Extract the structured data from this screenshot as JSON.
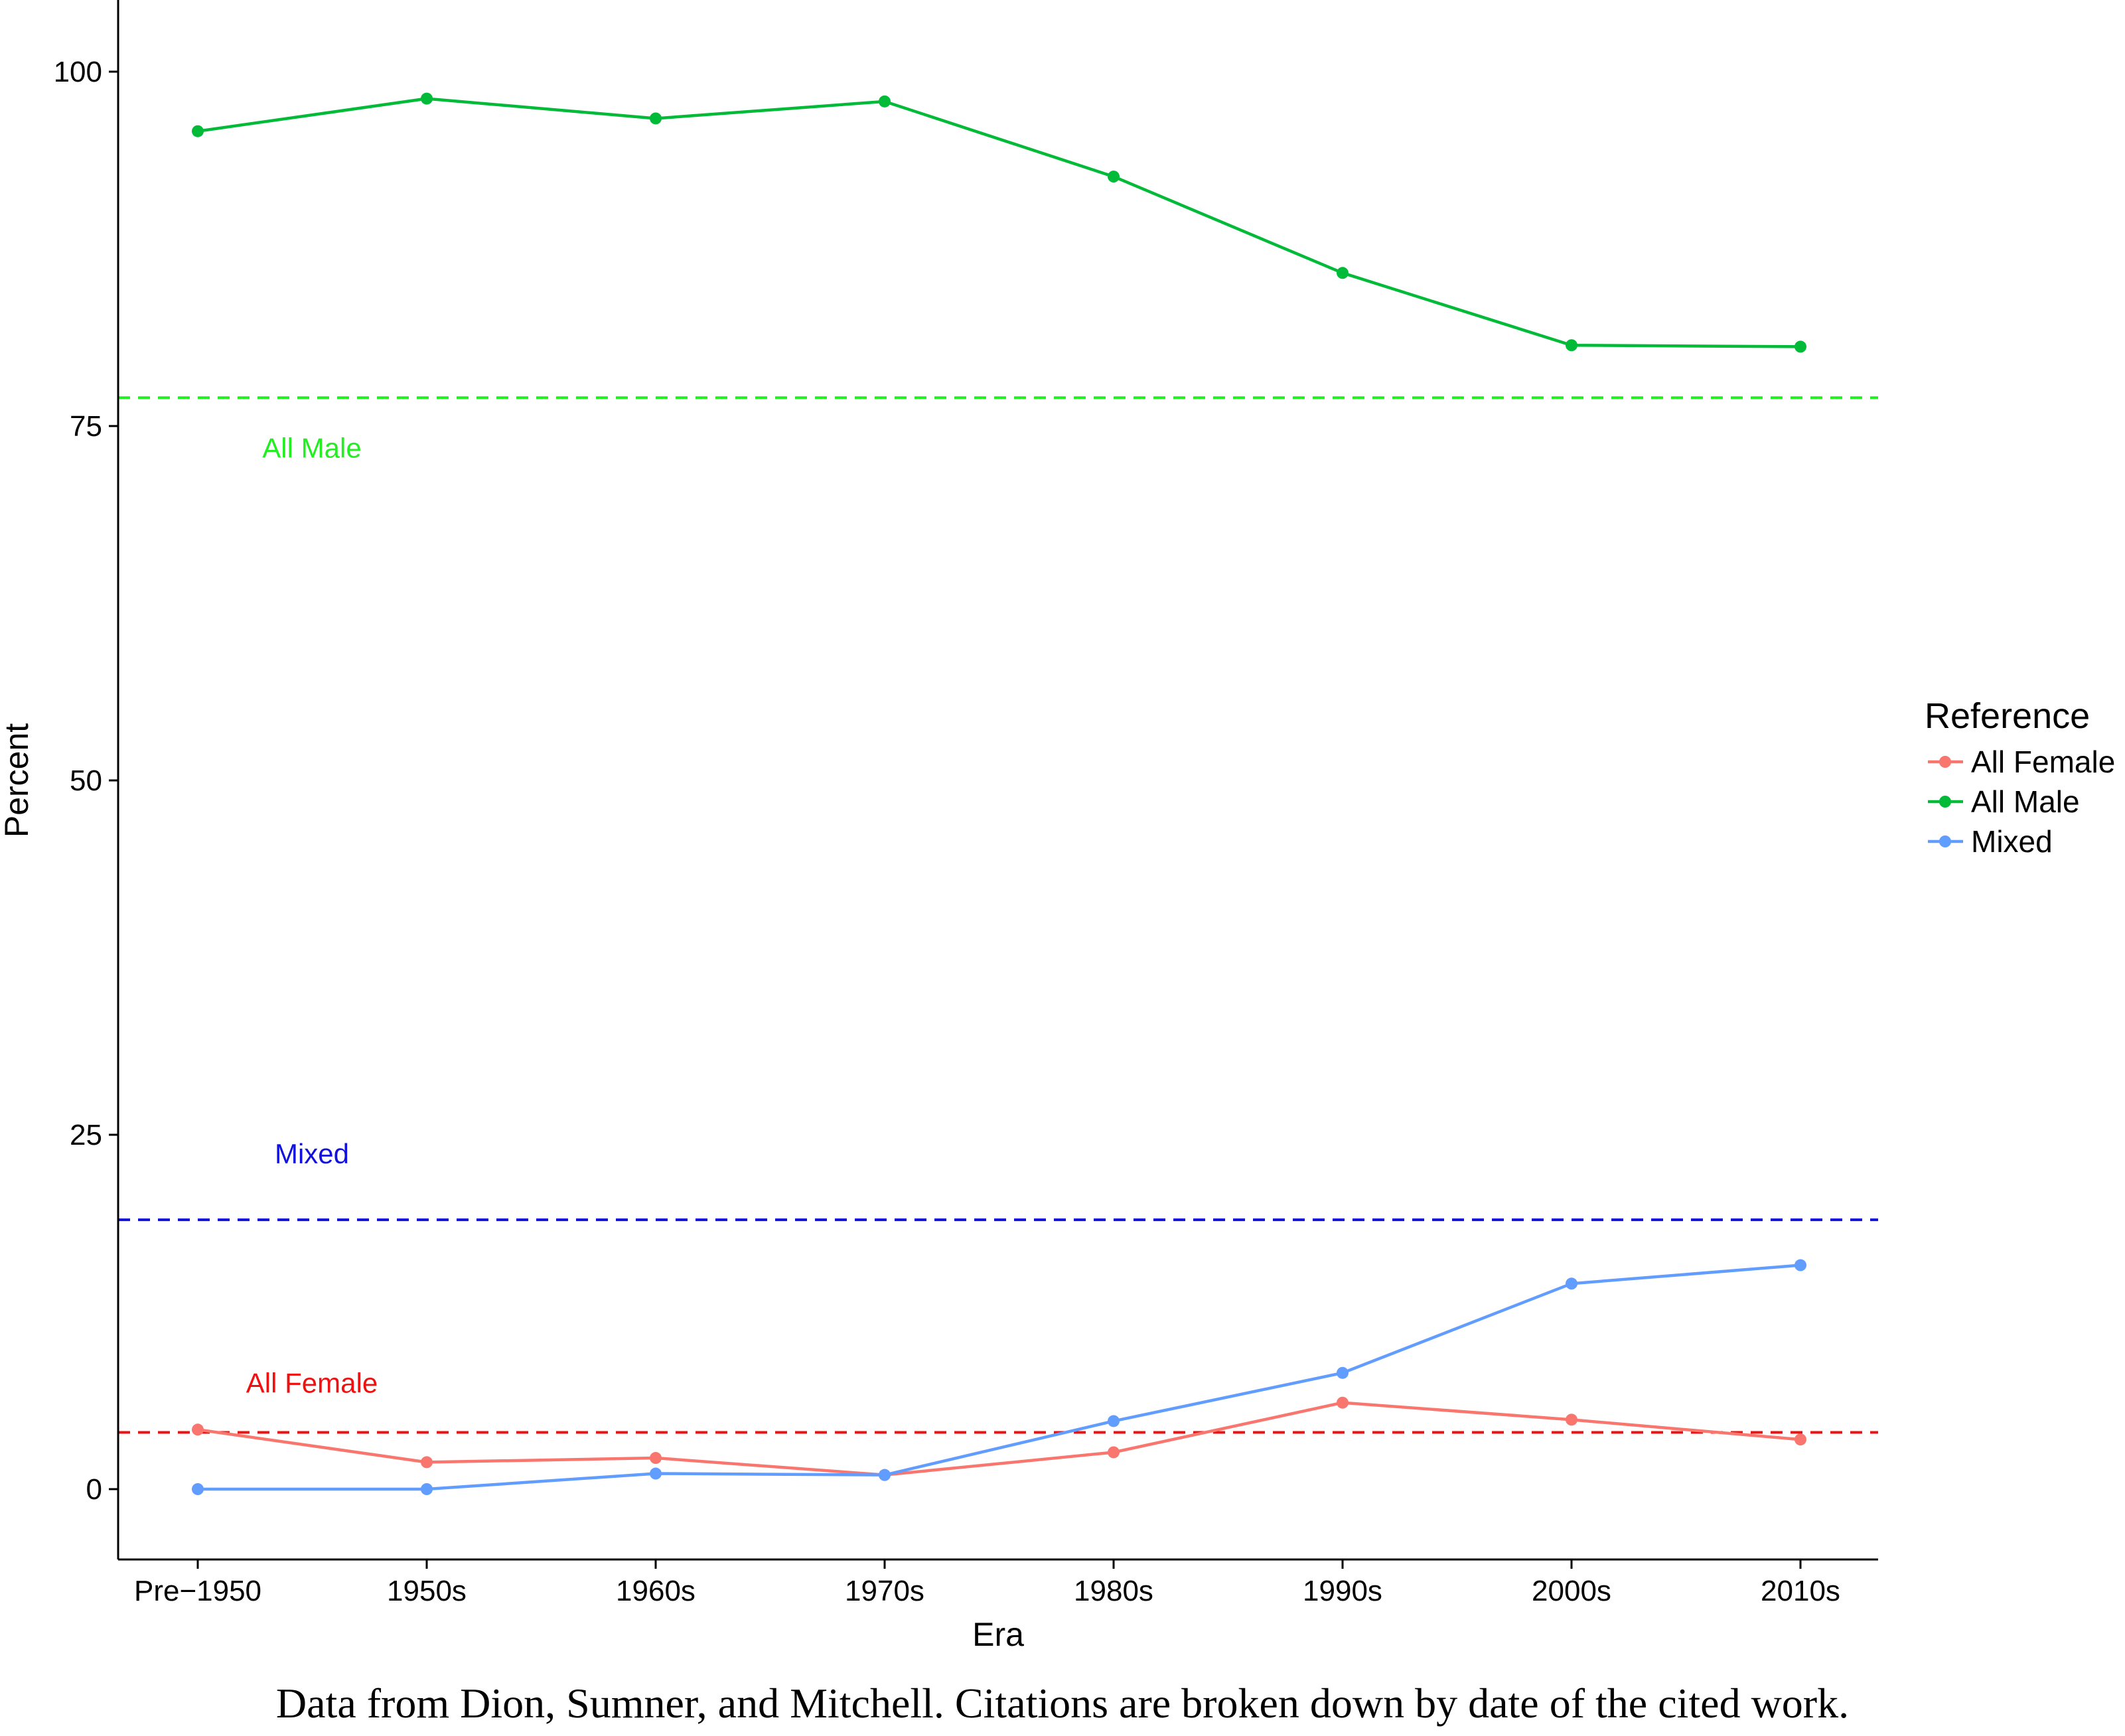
{
  "chart_data": {
    "type": "line",
    "categories": [
      "Pre−1950",
      "1950s",
      "1960s",
      "1970s",
      "1980s",
      "1990s",
      "2000s",
      "2010s"
    ],
    "series": [
      {
        "name": "All Female",
        "color": "#f8766d",
        "values": [
          4.2,
          1.9,
          2.2,
          1.0,
          2.6,
          6.1,
          4.9,
          3.5
        ]
      },
      {
        "name": "All Male",
        "color": "#00ba38",
        "values": [
          95.8,
          98.1,
          96.7,
          97.9,
          92.6,
          85.8,
          80.7,
          80.6
        ]
      },
      {
        "name": "Mixed",
        "color": "#619cff",
        "values": [
          0.0,
          0.0,
          1.1,
          1.0,
          4.8,
          8.2,
          14.5,
          15.8
        ]
      }
    ],
    "reference_lines": [
      {
        "label": "All Male",
        "value": 77.0,
        "color": "#22ee22"
      },
      {
        "label": "Mixed",
        "value": 19.0,
        "color": "#1111dd"
      },
      {
        "label": "All Female",
        "value": 4.0,
        "color": "#ee1111"
      }
    ],
    "yticks": [
      0,
      25,
      50,
      75,
      100
    ],
    "ylim": [
      -5,
      105
    ],
    "xlabel": "Era",
    "ylabel": "Percent",
    "legend": {
      "title": "Reference",
      "position": "right"
    },
    "grid": false
  },
  "caption": "Data from Dion, Sumner, and Mitchell. Citations are broken down by date of the cited work."
}
